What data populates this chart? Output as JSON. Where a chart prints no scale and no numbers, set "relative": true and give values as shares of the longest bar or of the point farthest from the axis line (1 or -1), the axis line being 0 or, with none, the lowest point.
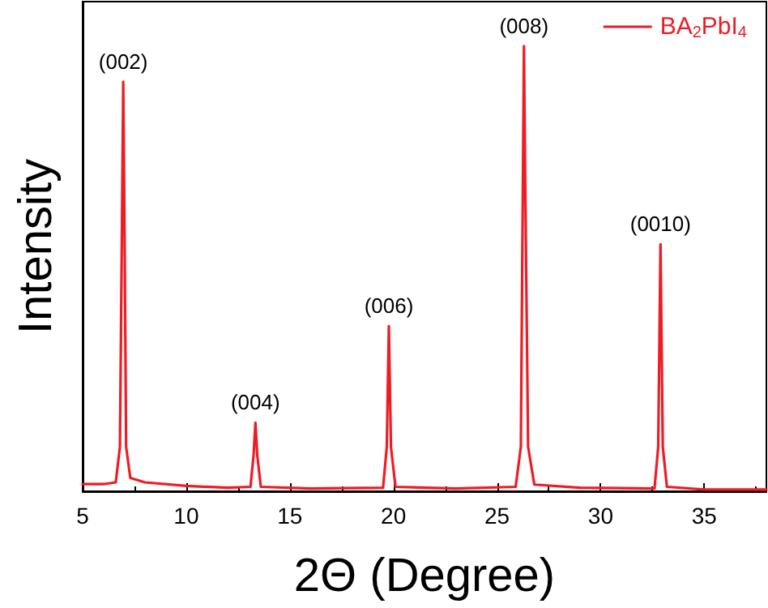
{
  "chart_data": {
    "type": "line",
    "relative": true,
    "xlabel": "2Θ (Degree)",
    "ylabel": "Intensity",
    "xlim": [
      5,
      38
    ],
    "xticks": [
      5,
      10,
      15,
      20,
      25,
      30,
      35
    ],
    "legend": "top right",
    "marker": "none",
    "line_style": "solid",
    "grid": false,
    "series": [
      {
        "name": "BA$_{2}$PbI$_{4}$",
        "color": "#ee1c25",
        "x": [
          5,
          6,
          6.6,
          6.8,
          6.9,
          6.96,
          7.02,
          7.1,
          7.3,
          8,
          10,
          12,
          13.1,
          13.25,
          13.34,
          13.43,
          13.6,
          16,
          19.5,
          19.68,
          19.78,
          19.88,
          20.1,
          23,
          25.9,
          26.15,
          26.25,
          26.3,
          26.36,
          26.5,
          26.8,
          29,
          32.6,
          32.78,
          32.89,
          33.0,
          33.2,
          35,
          38
        ],
        "values": [
          0.016,
          0.016,
          0.02,
          0.1,
          0.6,
          0.92,
          0.6,
          0.1,
          0.03,
          0.02,
          0.012,
          0.008,
          0.01,
          0.08,
          0.154,
          0.08,
          0.01,
          0.006,
          0.008,
          0.1,
          0.371,
          0.1,
          0.01,
          0.006,
          0.01,
          0.1,
          0.7,
          1,
          0.7,
          0.1,
          0.015,
          0.008,
          0.006,
          0.1,
          0.555,
          0.1,
          0.01,
          0.004,
          0.004
        ]
      }
    ],
    "annotations": [
      {
        "text": "(002)",
        "x": 6.96,
        "y": 0.92
      },
      {
        "text": "(004)",
        "x": 13.34,
        "y": 0.154
      },
      {
        "text": "(006)",
        "x": 19.78,
        "y": 0.371
      },
      {
        "text": "(008)",
        "x": 26.3,
        "y": 1
      },
      {
        "text": "(0010)",
        "x": 32.89,
        "y": 0.555
      }
    ]
  }
}
